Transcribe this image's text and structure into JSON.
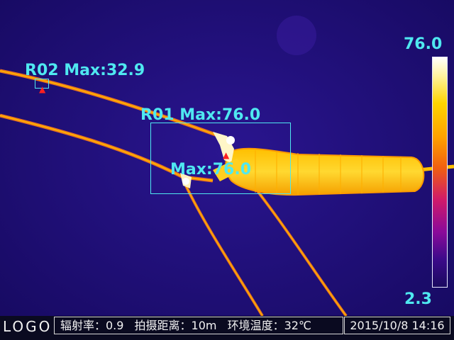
{
  "regions": {
    "r01": {
      "label": "R01 Max:76.0"
    },
    "r02": {
      "label": "R02 Max:32.9"
    },
    "spot": {
      "label": "Max:76.0"
    }
  },
  "scale": {
    "max": "76.0",
    "min": "2.3"
  },
  "status": {
    "logo": "LOGO",
    "emissivity": "辐射率：0.9",
    "distance": "拍摄距离：10m",
    "ambient": "环境温度：32℃",
    "datetime": "2015/10/8 14:16"
  },
  "colors": {
    "overlay": "#4fe8f0",
    "marker": "#ff2020",
    "background": "#1e0f78",
    "hot": "#ffd400"
  }
}
